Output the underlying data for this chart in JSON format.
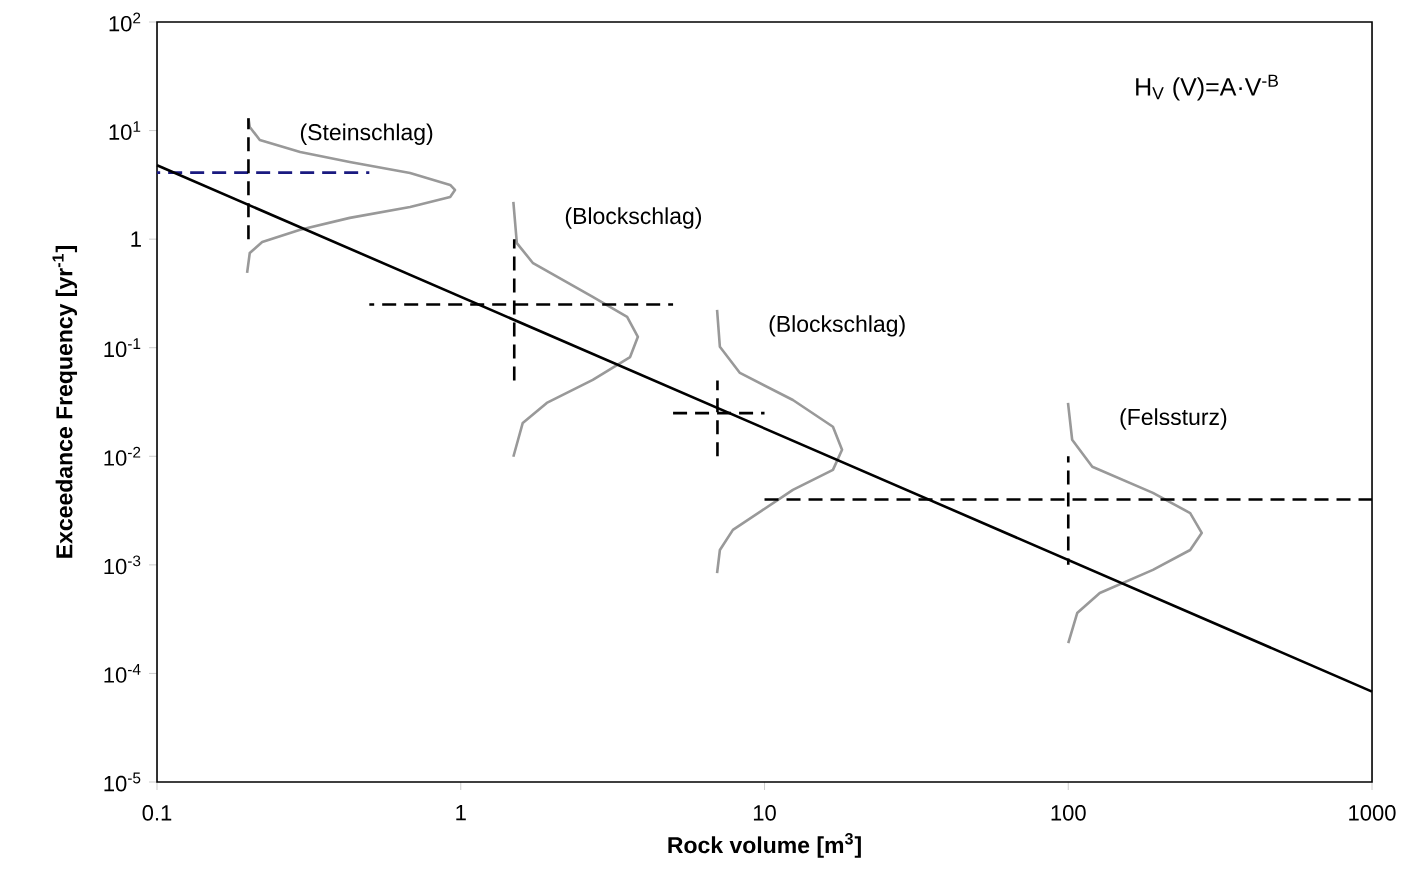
{
  "chart_data": {
    "type": "line",
    "log": "xy",
    "xlabel": "Rock volume [m$^{3}$]",
    "ylabel": "Exceedance Frequency [yr$^{-1}$]",
    "xlim": [
      0.1,
      1000
    ],
    "ylim": [
      1e-05,
      100
    ],
    "xticks": [
      0.1,
      1,
      10,
      100,
      1000
    ],
    "yticks": [
      {
        "value": 1e-05,
        "label": "10$^{-5}$"
      },
      {
        "value": 0.0001,
        "label": "10$^{-4}$"
      },
      {
        "value": 0.001,
        "label": "10$^{-3}$"
      },
      {
        "value": 0.01,
        "label": "10$^{-2}$"
      },
      {
        "value": 0.1,
        "label": "10$^{-1}$"
      },
      {
        "value": 1,
        "label": "1"
      },
      {
        "value": 10,
        "label": "10$^{1}$"
      },
      {
        "value": 100,
        "label": "10$^{2}$"
      }
    ],
    "series": [
      {
        "name": "(Steinschlag)",
        "color": "#999999",
        "line_style": "solid",
        "x": [
          0.2,
          0.202,
          0.218,
          0.296,
          0.431,
          0.681,
          0.923,
          0.957,
          0.923,
          0.681,
          0.431,
          0.296,
          0.222,
          0.202,
          0.198
        ],
        "values": [
          13,
          10.8,
          8.2,
          6.35,
          5.14,
          4.07,
          3.16,
          2.84,
          2.45,
          1.98,
          1.57,
          1.22,
          0.94,
          0.746,
          0.489
        ]
      },
      {
        "name": "(Blockschlag)",
        "color": "#999999",
        "line_style": "solid",
        "x": [
          1.49,
          1.53,
          1.73,
          2.72,
          3.53,
          3.83,
          3.61,
          2.72,
          1.92,
          1.6,
          1.49
        ],
        "values": [
          2.2,
          0.92,
          0.6,
          0.294,
          0.192,
          0.126,
          0.082,
          0.0505,
          0.031,
          0.0203,
          0.0099
        ]
      },
      {
        "name": "(Blockschlag)",
        "color": "#999999",
        "line_style": "solid",
        "x": [
          6.98,
          7.13,
          8.3,
          12.4,
          16.8,
          18.0,
          16.8,
          12.4,
          7.87,
          7.13,
          6.98
        ],
        "values": [
          0.223,
          0.102,
          0.0586,
          0.033,
          0.0187,
          0.0115,
          0.0075,
          0.0049,
          0.0021,
          0.00137,
          0.00084
        ]
      },
      {
        "name": "(Felssturz)",
        "color": "#999999",
        "line_style": "solid",
        "x": [
          99.8,
          103,
          120,
          190,
          252,
          275,
          252,
          190,
          127,
          107,
          100
        ],
        "values": [
          0.031,
          0.0142,
          0.008,
          0.0046,
          0.003,
          0.00197,
          0.00137,
          0.0009,
          0.00055,
          0.00036,
          0.00019
        ]
      },
      {
        "color": "#1a1a80",
        "line_style": "dashed",
        "x": [
          0.1,
          0.5
        ],
        "values": [
          4.1,
          4.1
        ]
      },
      {
        "color": "#000000",
        "line_style": "dashed",
        "x": [
          0.2,
          0.2
        ],
        "values": [
          1,
          13
        ]
      },
      {
        "color": "#000000",
        "line_style": "dashed",
        "x": [
          0.5,
          5
        ],
        "values": [
          0.25,
          0.25
        ]
      },
      {
        "color": "#000000",
        "line_style": "dashed",
        "x": [
          1.5,
          1.5
        ],
        "values": [
          0.05,
          1
        ]
      },
      {
        "color": "#000000",
        "line_style": "dashed",
        "x": [
          5,
          10
        ],
        "values": [
          0.025,
          0.025
        ]
      },
      {
        "color": "#000000",
        "line_style": "dashed",
        "x": [
          7,
          7
        ],
        "values": [
          0.01,
          0.05
        ]
      },
      {
        "color": "#000000",
        "line_style": "dashed",
        "x": [
          10,
          1000
        ],
        "values": [
          0.004,
          0.004
        ]
      },
      {
        "color": "#000000",
        "line_style": "dashed",
        "x": [
          100,
          100
        ],
        "values": [
          0.001,
          0.01
        ]
      },
      {
        "color": "#000000",
        "line_style": "solid",
        "x": [
          0.1,
          1000
        ],
        "values": [
          4.8,
          6.8e-05
        ]
      }
    ],
    "annotations": [
      "H$_{V}$ (V)=A·V$^{-B}$"
    ]
  }
}
